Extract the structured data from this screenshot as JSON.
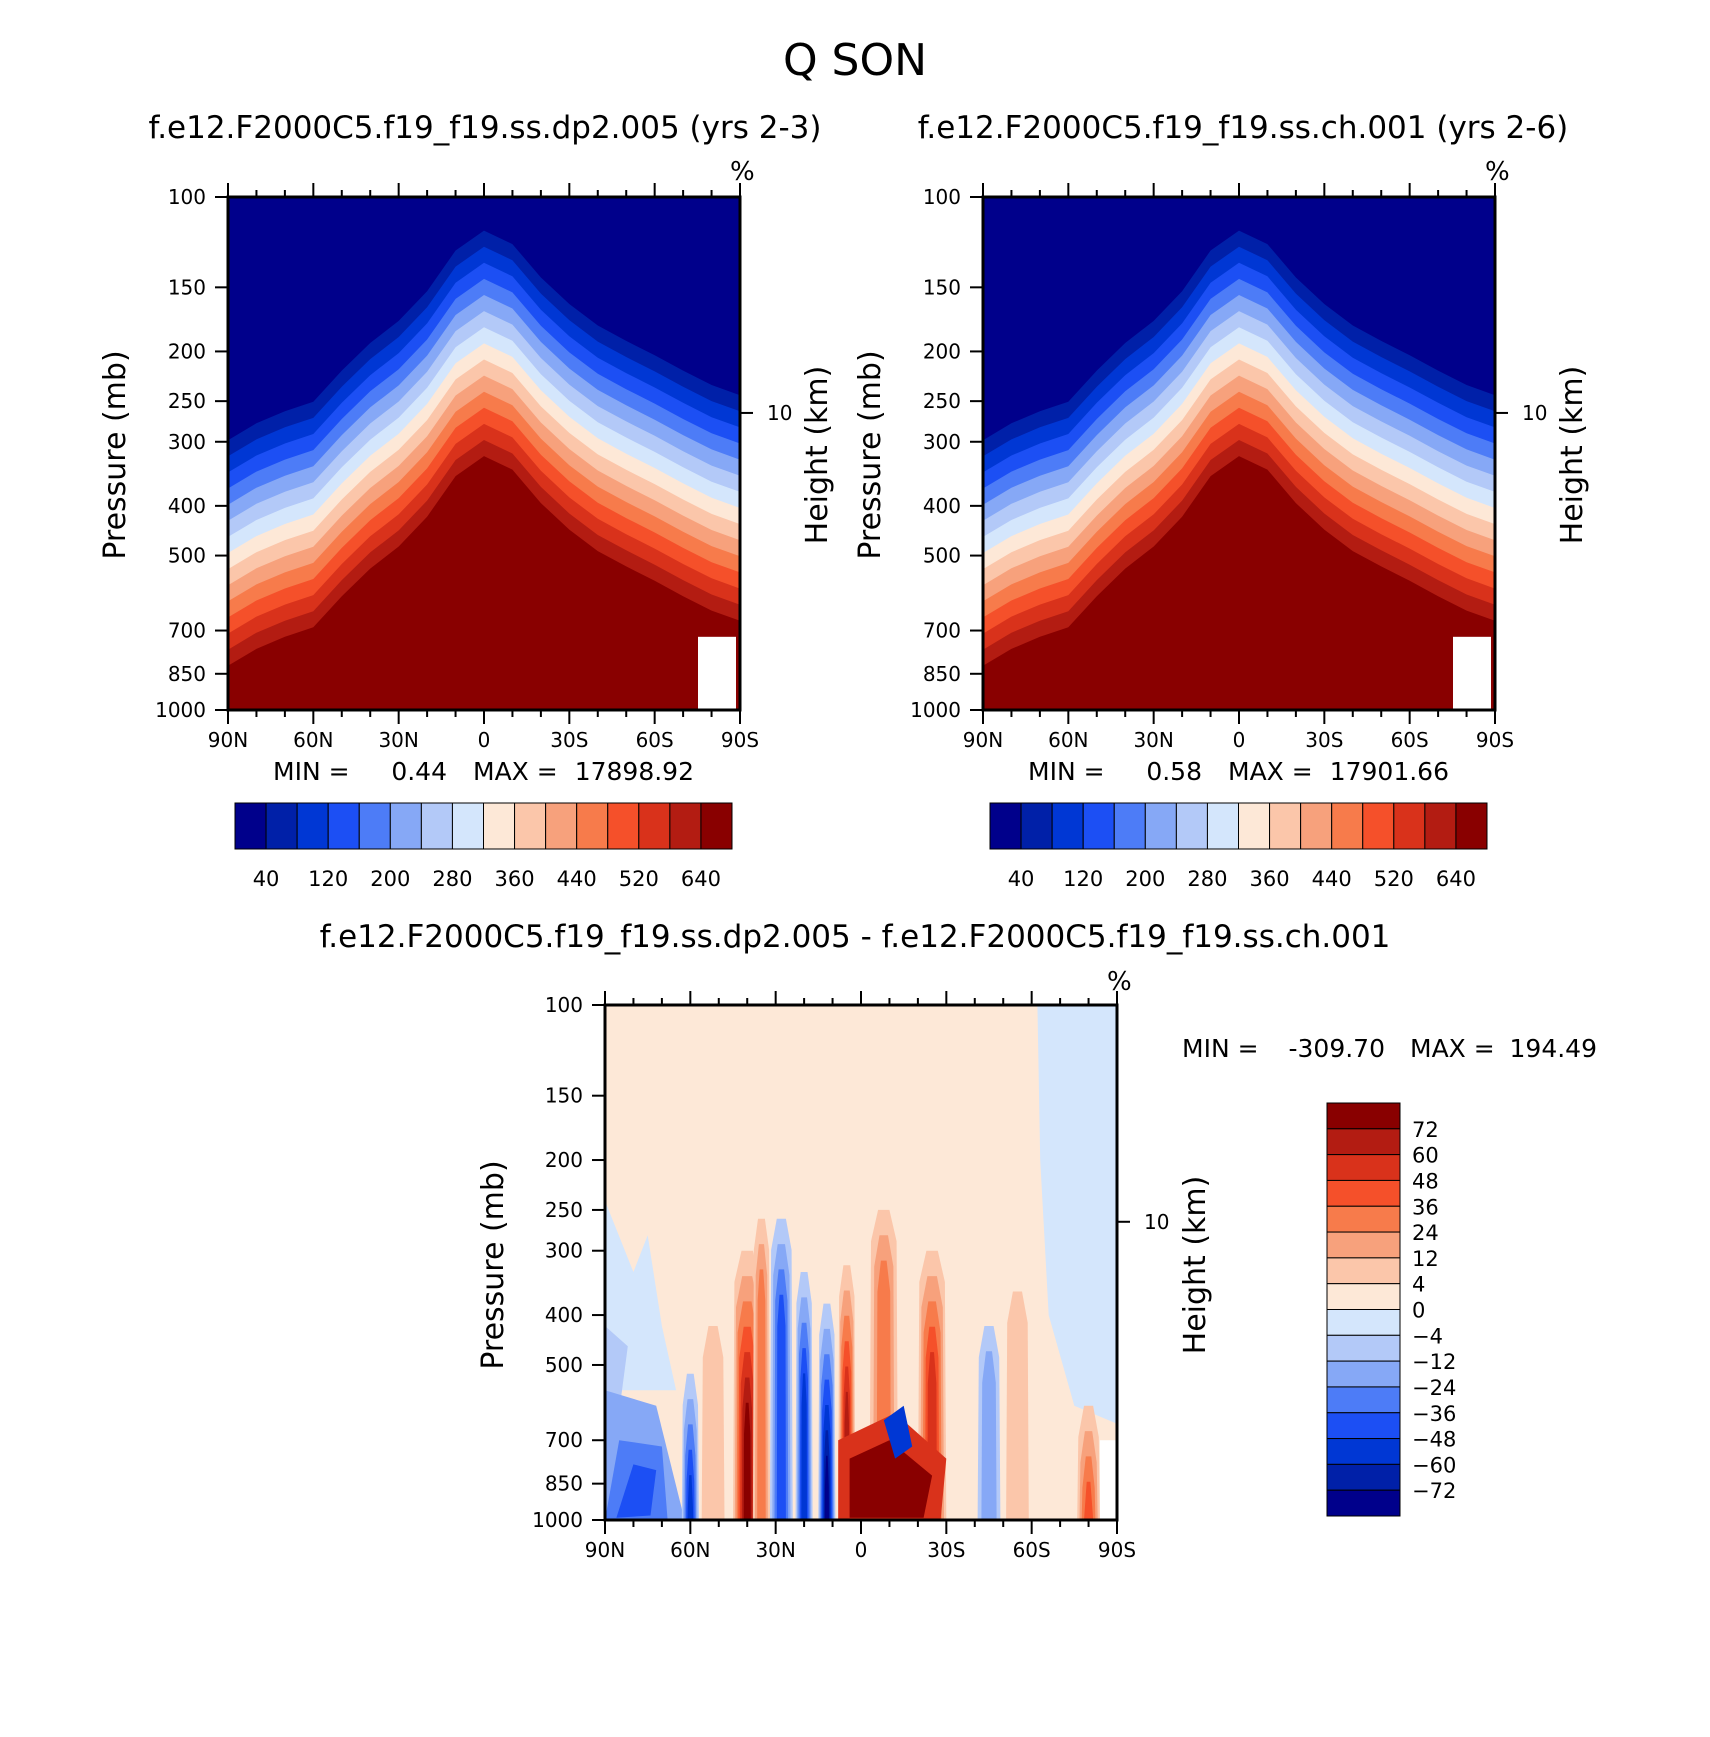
{
  "title": "Q SON",
  "units": "%",
  "chart_data": [
    {
      "type": "contour",
      "id": "top-left",
      "title": "f.e12.F2000C5.f19_f19.ss.dp2.005 (yrs 2-3)",
      "xlabel": "",
      "ylabel": "Pressure (mb)",
      "right_label": "Height (km)",
      "units": "%",
      "x_ticks": [
        "90N",
        "60N",
        "30N",
        "0",
        "30S",
        "60S",
        "90S"
      ],
      "y_ticks": [
        100,
        150,
        200,
        250,
        300,
        400,
        500,
        700,
        850,
        1000
      ],
      "right_ticks": [
        10
      ],
      "ylim": [
        1000,
        100
      ],
      "min_label": "MIN =",
      "min_value": "0.44",
      "max_label": "MAX =",
      "max_value": "17898.92",
      "colorbar_labels": [
        "40",
        "120",
        "200",
        "280",
        "360",
        "440",
        "520",
        "640"
      ],
      "colorbar_colors": [
        "#00008b",
        "#0020a8",
        "#0037d4",
        "#1c4ff4",
        "#4d7cf7",
        "#86a8f6",
        "#b3c9f8",
        "#d4e6fc",
        "#fde8d7",
        "#fbc6aa",
        "#f7a17c",
        "#f77b4b",
        "#f5502a",
        "#d9321b",
        "#b31c12",
        "#890000"
      ],
      "profile_lat": [
        -90,
        -80,
        -70,
        -60,
        -50,
        -40,
        -30,
        -20,
        -10,
        0,
        10,
        20,
        30,
        40,
        50,
        60,
        70,
        80,
        90
      ],
      "profile_p_dark_red": [
        670,
        640,
        600,
        560,
        525,
        490,
        445,
        395,
        340,
        320,
        350,
        420,
        480,
        530,
        600,
        690,
        720,
        760,
        820
      ]
    },
    {
      "type": "contour",
      "id": "top-right",
      "title": "f.e12.F2000C5.f19_f19.ss.ch.001 (yrs 2-6)",
      "xlabel": "",
      "ylabel": "Pressure (mb)",
      "right_label": "Height (km)",
      "units": "%",
      "x_ticks": [
        "90N",
        "60N",
        "30N",
        "0",
        "30S",
        "60S",
        "90S"
      ],
      "y_ticks": [
        100,
        150,
        200,
        250,
        300,
        400,
        500,
        700,
        850,
        1000
      ],
      "right_ticks": [
        10
      ],
      "ylim": [
        1000,
        100
      ],
      "min_label": "MIN =",
      "min_value": "0.58",
      "max_label": "MAX =",
      "max_value": "17901.66",
      "colorbar_labels": [
        "40",
        "120",
        "200",
        "280",
        "360",
        "440",
        "520",
        "640"
      ],
      "colorbar_colors": [
        "#00008b",
        "#0020a8",
        "#0037d4",
        "#1c4ff4",
        "#4d7cf7",
        "#86a8f6",
        "#b3c9f8",
        "#d4e6fc",
        "#fde8d7",
        "#fbc6aa",
        "#f7a17c",
        "#f77b4b",
        "#f5502a",
        "#d9321b",
        "#b31c12",
        "#890000"
      ],
      "profile_lat": [
        -90,
        -80,
        -70,
        -60,
        -50,
        -40,
        -30,
        -20,
        -10,
        0,
        10,
        20,
        30,
        40,
        50,
        60,
        70,
        80,
        90
      ],
      "profile_p_dark_red": [
        670,
        640,
        600,
        560,
        525,
        490,
        445,
        395,
        340,
        320,
        350,
        420,
        480,
        530,
        600,
        690,
        720,
        760,
        820
      ]
    },
    {
      "type": "contour",
      "id": "bottom-diff",
      "title": "f.e12.F2000C5.f19_f19.ss.dp2.005 - f.e12.F2000C5.f19_f19.ss.ch.001",
      "xlabel": "",
      "ylabel": "Pressure (mb)",
      "right_label": "Height (km)",
      "units": "%",
      "x_ticks": [
        "90N",
        "60N",
        "30N",
        "0",
        "30S",
        "60S",
        "90S"
      ],
      "y_ticks": [
        100,
        150,
        200,
        250,
        300,
        400,
        500,
        700,
        850,
        1000
      ],
      "right_ticks": [
        10
      ],
      "ylim": [
        1000,
        100
      ],
      "min_label": "MIN =",
      "min_value": "-309.70",
      "max_label": "MAX =",
      "max_value": "194.49",
      "colorbar_labels": [
        "72",
        "60",
        "48",
        "36",
        "24",
        "12",
        "4",
        "0",
        "-4",
        "-12",
        "-24",
        "-36",
        "-48",
        "-60",
        "-72"
      ],
      "colorbar_colors": [
        "#890000",
        "#b31c12",
        "#d9321b",
        "#f5502a",
        "#f77b4b",
        "#f7a17c",
        "#fbc6aa",
        "#fde8d7",
        "#d4e6fc",
        "#b3c9f8",
        "#86a8f6",
        "#4d7cf7",
        "#1c4ff4",
        "#0037d4",
        "#0020a8",
        "#00008b"
      ]
    }
  ]
}
